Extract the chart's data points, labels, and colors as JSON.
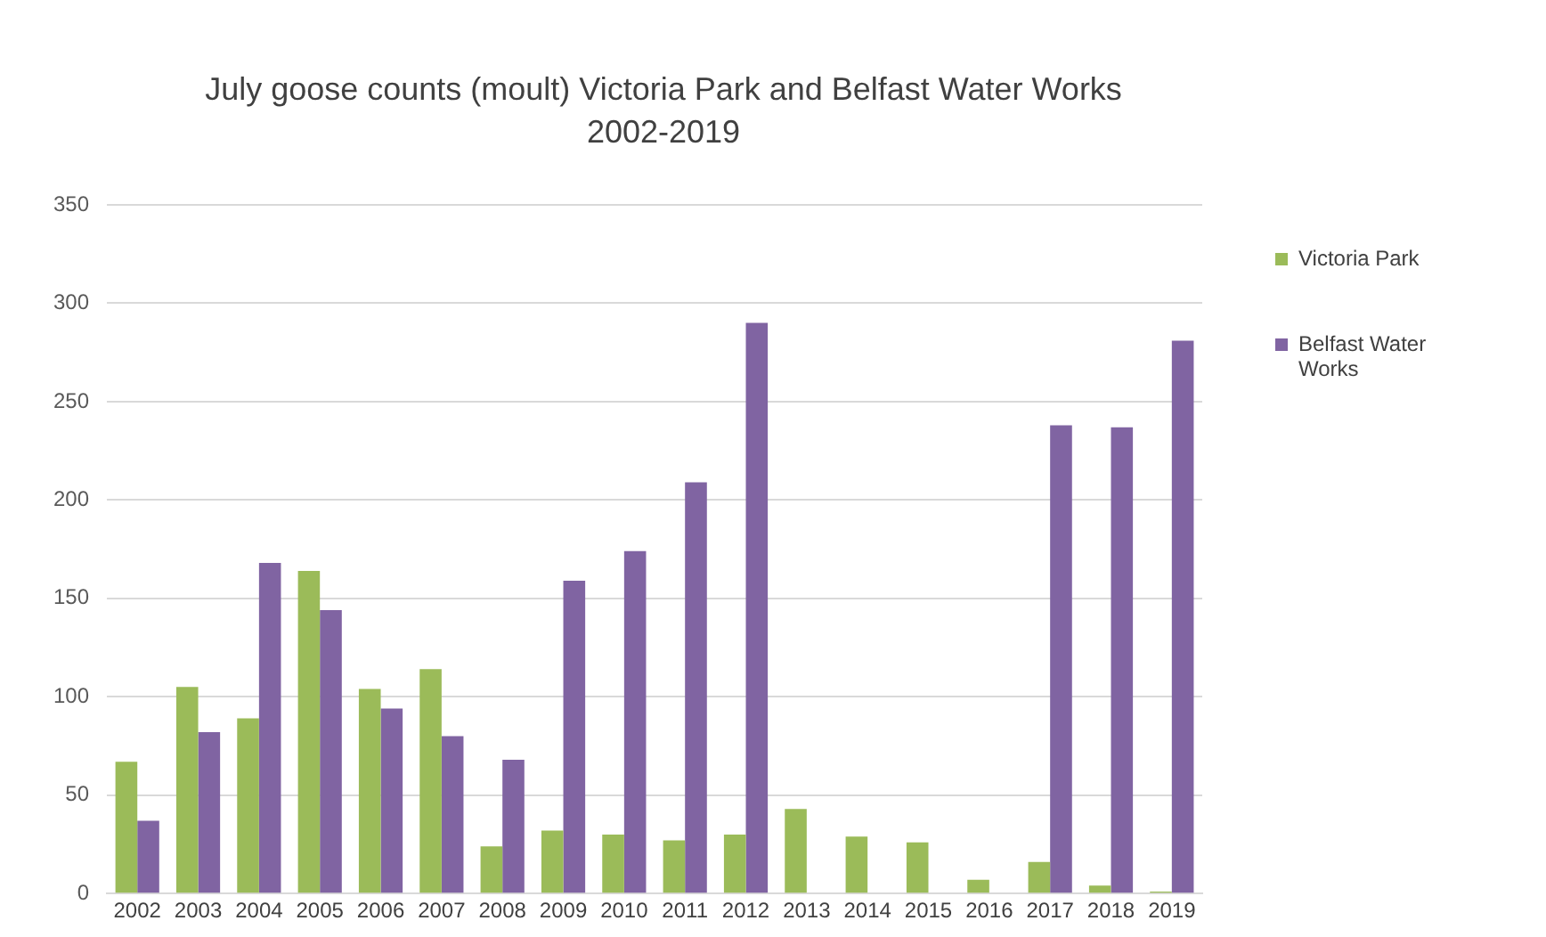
{
  "chart_data": {
    "type": "bar",
    "title": "July  goose counts (moult) Victoria Park and Belfast Water Works\n2002-2019",
    "categories": [
      "2002",
      "2003",
      "2004",
      "2005",
      "2006",
      "2007",
      "2008",
      "2009",
      "2010",
      "2011",
      "2012",
      "2013",
      "2014",
      "2015",
      "2016",
      "2017",
      "2018",
      "2019"
    ],
    "series": [
      {
        "name": "Victoria Park",
        "color": "#9bbb59",
        "values": [
          67,
          105,
          89,
          164,
          104,
          114,
          24,
          32,
          30,
          27,
          30,
          43,
          29,
          26,
          7,
          16,
          4,
          1
        ]
      },
      {
        "name": "Belfast Water Works",
        "color": "#8064a2",
        "values": [
          37,
          82,
          168,
          144,
          94,
          80,
          68,
          159,
          174,
          209,
          290,
          0,
          0,
          0,
          0,
          238,
          237,
          281
        ]
      }
    ],
    "ylim": [
      0,
      350
    ],
    "yticks": [
      0,
      50,
      100,
      150,
      200,
      250,
      300,
      350
    ],
    "grid": "y",
    "legend": "right"
  }
}
